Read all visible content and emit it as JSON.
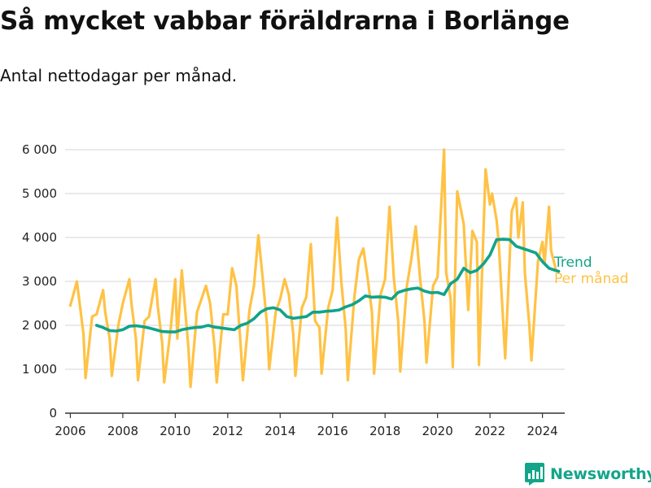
{
  "title": "Så mycket vabbar föräldrarna i Borlänge",
  "subtitle": "Antal nettodagar per månad.",
  "brand": {
    "name": "Newsworthy",
    "icon": "newsworthy-logo-icon"
  },
  "colors": {
    "monthly": "#ffc244",
    "trend": "#11a38a",
    "grid": "#dddddd",
    "axis": "#333333"
  },
  "chart_data": {
    "type": "line",
    "ylim": [
      0,
      6000
    ],
    "xlim": [
      2005.8,
      2024.85
    ],
    "y_ticks": [
      0,
      1000,
      2000,
      3000,
      4000,
      5000,
      6000
    ],
    "y_tick_labels": [
      "0",
      "1 000",
      "2 000",
      "3 000",
      "4 000",
      "5 000",
      "6 000"
    ],
    "x_ticks": [
      2006,
      2008,
      2010,
      2012,
      2014,
      2016,
      2018,
      2020,
      2022,
      2024
    ],
    "x_tick_labels": [
      "2006",
      "2008",
      "2010",
      "2012",
      "2014",
      "2016",
      "2018",
      "2020",
      "2022",
      "2024"
    ],
    "grid": "horizontal",
    "legend": "right end of lines",
    "series": [
      {
        "name": "Per månad",
        "color": "#ffc244",
        "points": [
          [
            2006.0,
            2450
          ],
          [
            2006.25,
            3000
          ],
          [
            2006.5,
            1800
          ],
          [
            2006.58,
            800
          ],
          [
            2006.83,
            2200
          ],
          [
            2007.0,
            2250
          ],
          [
            2007.25,
            2800
          ],
          [
            2007.33,
            2300
          ],
          [
            2007.5,
            1700
          ],
          [
            2007.58,
            850
          ],
          [
            2007.83,
            2000
          ],
          [
            2008.0,
            2500
          ],
          [
            2008.25,
            3050
          ],
          [
            2008.33,
            2500
          ],
          [
            2008.5,
            1700
          ],
          [
            2008.58,
            750
          ],
          [
            2008.83,
            2100
          ],
          [
            2009.0,
            2200
          ],
          [
            2009.25,
            3050
          ],
          [
            2009.33,
            2450
          ],
          [
            2009.5,
            1600
          ],
          [
            2009.58,
            700
          ],
          [
            2009.83,
            1950
          ],
          [
            2010.0,
            3050
          ],
          [
            2010.08,
            1700
          ],
          [
            2010.25,
            3250
          ],
          [
            2010.5,
            1500
          ],
          [
            2010.58,
            600
          ],
          [
            2010.83,
            2300
          ],
          [
            2011.0,
            2600
          ],
          [
            2011.17,
            2900
          ],
          [
            2011.33,
            2500
          ],
          [
            2011.5,
            1500
          ],
          [
            2011.58,
            700
          ],
          [
            2011.83,
            2250
          ],
          [
            2012.0,
            2250
          ],
          [
            2012.17,
            3300
          ],
          [
            2012.33,
            2900
          ],
          [
            2012.5,
            1500
          ],
          [
            2012.58,
            750
          ],
          [
            2012.83,
            2350
          ],
          [
            2013.0,
            2900
          ],
          [
            2013.17,
            4050
          ],
          [
            2013.33,
            3100
          ],
          [
            2013.5,
            2000
          ],
          [
            2013.58,
            1000
          ],
          [
            2013.83,
            2300
          ],
          [
            2014.0,
            2600
          ],
          [
            2014.17,
            3050
          ],
          [
            2014.33,
            2700
          ],
          [
            2014.5,
            1800
          ],
          [
            2014.58,
            850
          ],
          [
            2014.83,
            2400
          ],
          [
            2015.0,
            2650
          ],
          [
            2015.17,
            3850
          ],
          [
            2015.33,
            2100
          ],
          [
            2015.5,
            1950
          ],
          [
            2015.58,
            900
          ],
          [
            2015.83,
            2400
          ],
          [
            2016.0,
            2800
          ],
          [
            2016.17,
            4450
          ],
          [
            2016.33,
            3000
          ],
          [
            2016.5,
            1900
          ],
          [
            2016.58,
            750
          ],
          [
            2016.83,
            2650
          ],
          [
            2017.0,
            3500
          ],
          [
            2017.17,
            3750
          ],
          [
            2017.33,
            3100
          ],
          [
            2017.5,
            2300
          ],
          [
            2017.58,
            900
          ],
          [
            2017.83,
            2700
          ],
          [
            2018.0,
            3050
          ],
          [
            2018.17,
            4700
          ],
          [
            2018.33,
            3100
          ],
          [
            2018.5,
            2100
          ],
          [
            2018.58,
            950
          ],
          [
            2018.83,
            2900
          ],
          [
            2019.0,
            3500
          ],
          [
            2019.17,
            4250
          ],
          [
            2019.33,
            3100
          ],
          [
            2019.5,
            2100
          ],
          [
            2019.58,
            1150
          ],
          [
            2019.83,
            2900
          ],
          [
            2020.0,
            3100
          ],
          [
            2020.25,
            6000
          ],
          [
            2020.33,
            3200
          ],
          [
            2020.5,
            2600
          ],
          [
            2020.58,
            1050
          ],
          [
            2020.75,
            5050
          ],
          [
            2021.0,
            4300
          ],
          [
            2021.17,
            2350
          ],
          [
            2021.33,
            4150
          ],
          [
            2021.5,
            3900
          ],
          [
            2021.58,
            1100
          ],
          [
            2021.83,
            5550
          ],
          [
            2022.0,
            4750
          ],
          [
            2022.08,
            5000
          ],
          [
            2022.25,
            4400
          ],
          [
            2022.33,
            3900
          ],
          [
            2022.5,
            2100
          ],
          [
            2022.58,
            1250
          ],
          [
            2022.83,
            4600
          ],
          [
            2023.0,
            4900
          ],
          [
            2023.08,
            4000
          ],
          [
            2023.25,
            4800
          ],
          [
            2023.33,
            3200
          ],
          [
            2023.5,
            2000
          ],
          [
            2023.58,
            1200
          ],
          [
            2023.83,
            3450
          ],
          [
            2024.0,
            3900
          ],
          [
            2024.08,
            3400
          ],
          [
            2024.25,
            4700
          ],
          [
            2024.33,
            3700
          ],
          [
            2024.5,
            3300
          ]
        ]
      },
      {
        "name": "Trend",
        "color": "#11a38a",
        "points": [
          [
            2007.0,
            2000
          ],
          [
            2007.25,
            1950
          ],
          [
            2007.5,
            1880
          ],
          [
            2007.75,
            1870
          ],
          [
            2008.0,
            1900
          ],
          [
            2008.25,
            1980
          ],
          [
            2008.5,
            1990
          ],
          [
            2008.75,
            1970
          ],
          [
            2009.0,
            1940
          ],
          [
            2009.25,
            1900
          ],
          [
            2009.5,
            1860
          ],
          [
            2009.75,
            1850
          ],
          [
            2010.0,
            1850
          ],
          [
            2010.25,
            1900
          ],
          [
            2010.5,
            1930
          ],
          [
            2010.75,
            1950
          ],
          [
            2011.0,
            1960
          ],
          [
            2011.25,
            2000
          ],
          [
            2011.5,
            1960
          ],
          [
            2011.75,
            1940
          ],
          [
            2012.0,
            1920
          ],
          [
            2012.25,
            1900
          ],
          [
            2012.5,
            2000
          ],
          [
            2012.75,
            2050
          ],
          [
            2013.0,
            2150
          ],
          [
            2013.25,
            2300
          ],
          [
            2013.5,
            2380
          ],
          [
            2013.75,
            2400
          ],
          [
            2014.0,
            2350
          ],
          [
            2014.25,
            2200
          ],
          [
            2014.5,
            2160
          ],
          [
            2014.75,
            2180
          ],
          [
            2015.0,
            2200
          ],
          [
            2015.25,
            2300
          ],
          [
            2015.5,
            2300
          ],
          [
            2015.75,
            2320
          ],
          [
            2016.0,
            2330
          ],
          [
            2016.25,
            2350
          ],
          [
            2016.5,
            2420
          ],
          [
            2016.75,
            2470
          ],
          [
            2017.0,
            2560
          ],
          [
            2017.25,
            2670
          ],
          [
            2017.5,
            2640
          ],
          [
            2017.75,
            2650
          ],
          [
            2018.0,
            2640
          ],
          [
            2018.25,
            2600
          ],
          [
            2018.5,
            2750
          ],
          [
            2018.75,
            2800
          ],
          [
            2019.0,
            2830
          ],
          [
            2019.25,
            2850
          ],
          [
            2019.5,
            2780
          ],
          [
            2019.75,
            2740
          ],
          [
            2020.0,
            2750
          ],
          [
            2020.25,
            2700
          ],
          [
            2020.5,
            2950
          ],
          [
            2020.75,
            3050
          ],
          [
            2021.0,
            3300
          ],
          [
            2021.25,
            3200
          ],
          [
            2021.5,
            3250
          ],
          [
            2021.75,
            3400
          ],
          [
            2022.0,
            3600
          ],
          [
            2022.25,
            3950
          ],
          [
            2022.5,
            3960
          ],
          [
            2022.75,
            3950
          ],
          [
            2023.0,
            3800
          ],
          [
            2023.25,
            3750
          ],
          [
            2023.5,
            3700
          ],
          [
            2023.75,
            3650
          ],
          [
            2024.0,
            3450
          ],
          [
            2024.25,
            3300
          ],
          [
            2024.5,
            3250
          ],
          [
            2024.62,
            3230
          ]
        ]
      }
    ]
  }
}
